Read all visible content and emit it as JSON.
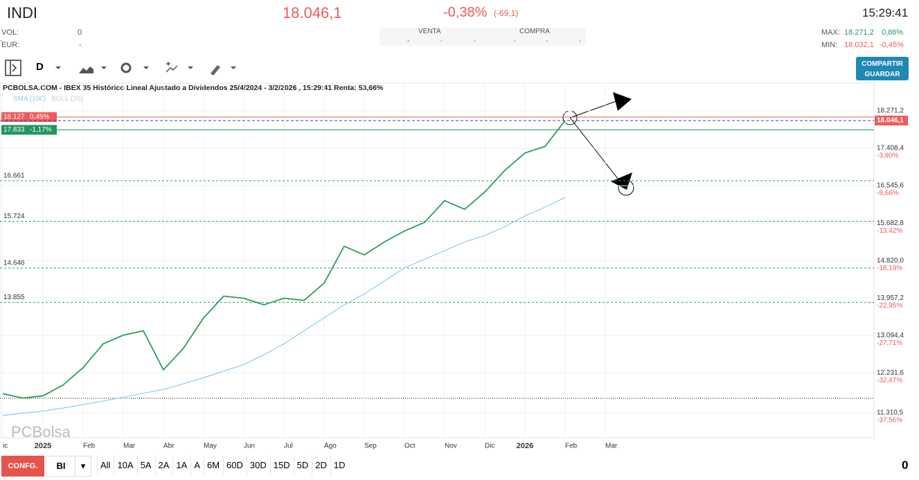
{
  "header": {
    "ticker": "INDI",
    "price": "18.046,1",
    "change_pct": "-0,38%",
    "change_abs": "(-69,1)",
    "time": "15:29:41",
    "vol_label": "VOL:",
    "vol": "0",
    "eur_label": "EUR:",
    "eur": "-",
    "sell_label": "VENTA",
    "buy_label": "COMPRA",
    "book_cells": [
      "-",
      "-",
      "-",
      "-",
      "-",
      "-",
      "-",
      "-"
    ],
    "max_label": "MAX:",
    "max": "18.271,2",
    "max_pct": "0,86%",
    "min_label": "MIN:",
    "min": "18.032,1",
    "min_pct": "-0,45%"
  },
  "toolbar": {
    "interval": "D",
    "share": "COMPARTIR",
    "save": "GUARDAR"
  },
  "footer": {
    "config": "CONFG.",
    "mode": "BI",
    "periods": [
      "All",
      "10A",
      "5A",
      "2A",
      "1A",
      "A",
      "6M",
      "60D",
      "30D",
      "15D",
      "5D",
      "2D",
      "1D"
    ],
    "counter": "0"
  },
  "chart_data": {
    "type": "line",
    "title": "PCBOLSA.COM - IBEX 35 Histórico Lineal Ajustado a Dividendos 25/4/2024 - 3/2/2026 , 15:29:41 Renta: 53,66%",
    "inactive_indicator": "BOLL (20)",
    "watermark": "PCBolsa",
    "categories": [
      "ic",
      null,
      "2025",
      null,
      "Feb",
      null,
      "Mar",
      null,
      "Abr",
      null,
      "May",
      null,
      "Jun",
      null,
      "Jul",
      null,
      "Ago",
      null,
      "Sep",
      null,
      "Oct",
      null,
      "Nov",
      null,
      "Dic",
      null,
      "2026",
      null,
      "Feb",
      null,
      "Mar"
    ],
    "series": [
      {
        "color": "#2a9d5c",
        "values": [
          11750,
          11650,
          11700,
          11950,
          12350,
          12900,
          13100,
          13200,
          12300,
          12800,
          13500,
          14000,
          13950,
          13800,
          13950,
          13900,
          14300,
          15150,
          14950,
          15250,
          15500,
          15700,
          16200,
          16000,
          16400,
          16900,
          17300,
          17450,
          18046.1,
          null,
          null
        ]
      },
      {
        "name": "SMA (100)",
        "color": "#8fcbef",
        "values": [
          11250,
          11300,
          11350,
          11420,
          11500,
          11580,
          11670,
          11760,
          11850,
          11980,
          12120,
          12270,
          12420,
          12650,
          12900,
          13200,
          13500,
          13800,
          14050,
          14350,
          14650,
          14850,
          15050,
          15250,
          15400,
          15600,
          15850,
          16050,
          16275,
          null,
          null
        ]
      }
    ],
    "ylim": [
      10735,
      18910
    ],
    "yticks": [
      {
        "value": 18271.2,
        "label": "18.271,2"
      },
      {
        "value": 17408.4,
        "label": "17.408,4"
      },
      {
        "value": 16545.6,
        "label": "16.545,6"
      },
      {
        "value": 15682.8,
        "label": "15.682,8"
      },
      {
        "value": 14820,
        "label": "14.820,0"
      },
      {
        "value": 13957.2,
        "label": "13.957,2"
      },
      {
        "value": 13094.4,
        "label": "13.094,4"
      },
      {
        "value": 12231.6,
        "label": "12.231,6"
      },
      {
        "value": 11310.5,
        "label": "11.310,5"
      }
    ],
    "ytick_changes": [
      {
        "value": 0.86,
        "label": "0,86%"
      },
      {
        "value": -3.9,
        "label": "-3,90%"
      },
      {
        "value": -8.66,
        "label": "-8,66%"
      },
      {
        "value": -13.42,
        "label": "-13,42%"
      },
      {
        "value": -18.19,
        "label": "-18,19%"
      },
      {
        "value": -22.95,
        "label": "-22,95%"
      },
      {
        "value": -27.71,
        "label": "-27,71%"
      },
      {
        "value": -32.47,
        "label": "-32,47%"
      },
      {
        "value": -37.56,
        "label": "-37,56%"
      }
    ],
    "levels": [
      {
        "value": 16661,
        "label": "16.661"
      },
      {
        "value": 15724,
        "label": "15.724"
      },
      {
        "value": 14646,
        "label": "14.646"
      },
      {
        "value": 13855,
        "label": "13.855"
      }
    ],
    "price_tags": [
      {
        "value": 18127,
        "label": "18.127",
        "change": {
          "value": 0.45,
          "label": "0,45%"
        },
        "color": "#f05a5a"
      },
      {
        "value": 17833,
        "label": "17.833",
        "change": {
          "value": -1.17,
          "label": "-1,17%"
        },
        "color": "#22955e"
      }
    ],
    "last": {
      "value": 18046.1,
      "label": "18.046,1"
    },
    "grid": true
  }
}
